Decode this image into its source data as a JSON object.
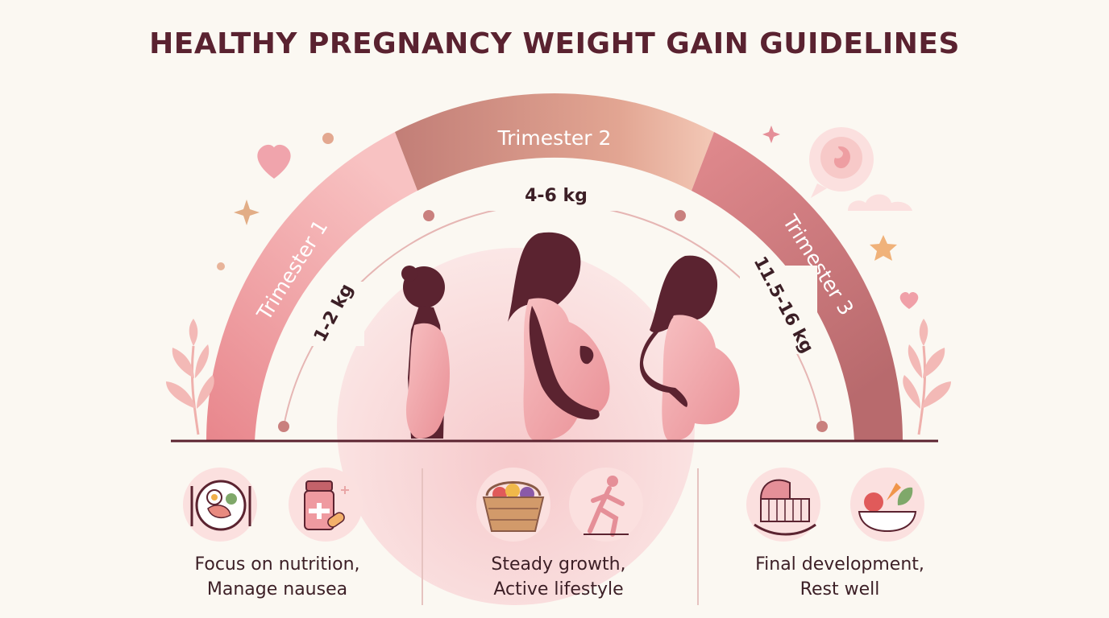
{
  "title": "HEALTHY PREGNANCY WEIGHT GAIN GUIDELINES",
  "trimesters": [
    {
      "label": "Trimester 1",
      "gain": "1-2 kg",
      "caption_line1": "Focus on nutrition,",
      "caption_line2": "Manage nausea",
      "icons": [
        "healthy-plate-icon",
        "supplement-bottle-icon"
      ]
    },
    {
      "label": "Trimester 2",
      "gain": "4-6 kg",
      "caption_line1": "Steady growth,",
      "caption_line2": "Active lifestyle",
      "icons": [
        "fruit-basket-icon",
        "running-woman-icon"
      ]
    },
    {
      "label": "Trimester 3",
      "gain": "11.5-16 kg",
      "caption_line1": "Final development,",
      "caption_line2": "Rest well",
      "icons": [
        "baby-cradle-icon",
        "vegetable-bowl-icon"
      ]
    }
  ],
  "colors": {
    "title": "#5a2230",
    "segment1": "#f4b4b8",
    "segment2": "#c8847a",
    "segment3": "#d9848a",
    "silhouette": "#5b2330",
    "body": "#f2a9ad",
    "circle": "#f8dfdd"
  }
}
